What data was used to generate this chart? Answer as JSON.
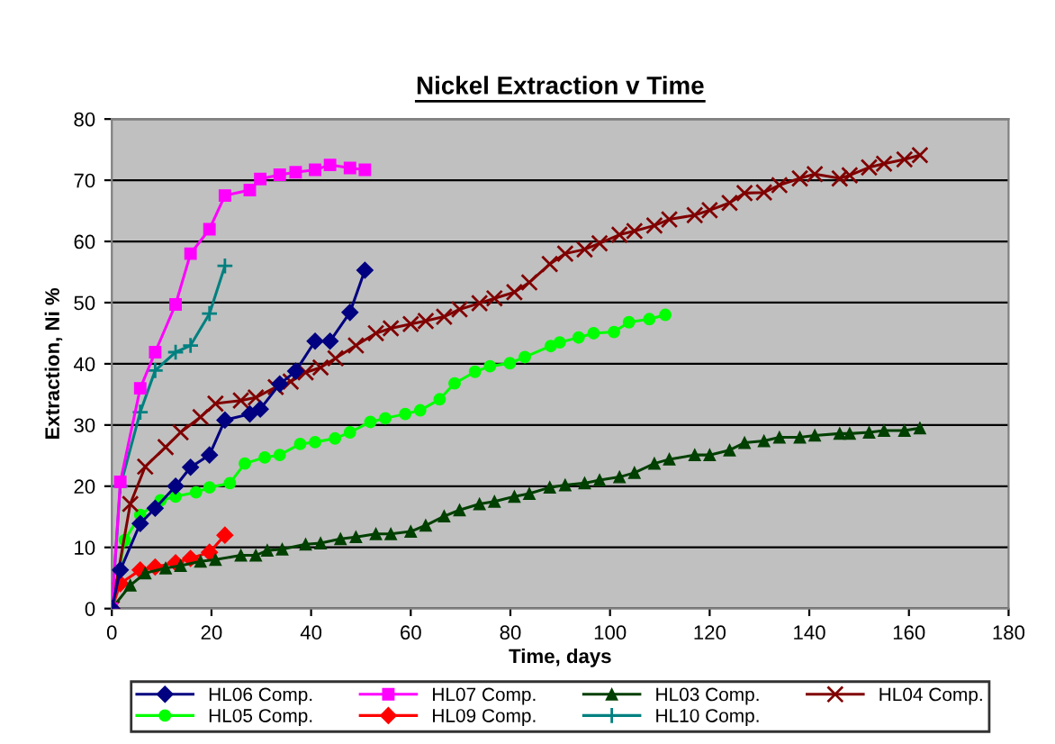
{
  "chart_data": {
    "type": "line",
    "title": "Nickel Extraction v Time",
    "xlabel": "Time, days",
    "ylabel": "Extraction, Ni %",
    "xlim": [
      0,
      180
    ],
    "xticks": [
      0,
      20,
      40,
      60,
      80,
      100,
      120,
      140,
      160,
      180
    ],
    "ylim": [
      0,
      80
    ],
    "yticks": [
      0,
      10,
      20,
      30,
      40,
      50,
      60,
      70,
      80
    ],
    "grid": "y",
    "legend": "bottom",
    "series": [
      {
        "name": "HL06 Comp.",
        "color": "#000080",
        "marker": "diamond",
        "x": [
          0,
          1.7,
          5.7,
          8.7,
          12.8,
          15.8,
          19.6,
          22.7,
          27.7,
          29.8,
          33.7,
          36.9,
          40.8,
          43.8,
          47.8,
          50.8
        ],
        "values": [
          0,
          6.3,
          13.9,
          16.4,
          20.0,
          23.1,
          25.1,
          30.8,
          31.8,
          32.6,
          36.7,
          38.8,
          43.7,
          43.7,
          48.4,
          55.3
        ]
      },
      {
        "name": "HL07 Comp.",
        "color": "#ff00ff",
        "marker": "square",
        "x": [
          0,
          1.7,
          5.7,
          8.7,
          12.8,
          15.8,
          19.6,
          22.7,
          27.7,
          29.8,
          33.7,
          36.9,
          40.8,
          43.8,
          47.8,
          50.8
        ],
        "values": [
          0,
          20.7,
          36.0,
          41.9,
          49.7,
          58.0,
          62.0,
          67.5,
          68.4,
          70.2,
          70.9,
          71.3,
          71.7,
          72.5,
          72.0,
          71.7
        ]
      },
      {
        "name": "HL03 Comp.",
        "color": "#004000",
        "marker": "triangle",
        "x": [
          0,
          3.7,
          6.7,
          10.8,
          13.8,
          17.8,
          20.8,
          25.9,
          28.9,
          31.2,
          34.2,
          38.9,
          41.9,
          45.9,
          49.0,
          53.0,
          56.0,
          60.0,
          63.0,
          66.7,
          69.8,
          73.8,
          76.8,
          80.8,
          83.8,
          87.9,
          91.0,
          94.9,
          97.9,
          101.9,
          104.9,
          108.9,
          111.9,
          117.0,
          120.0,
          124.0,
          127.0,
          130.9,
          134.0,
          138.1,
          141.1,
          146.1,
          148.1,
          152.0,
          155.0,
          159.1,
          162.2
        ],
        "values": [
          0,
          3.8,
          5.8,
          6.6,
          7.0,
          7.7,
          8.0,
          8.7,
          8.7,
          9.5,
          9.7,
          10.5,
          10.7,
          11.4,
          11.7,
          12.2,
          12.2,
          12.6,
          13.6,
          15.1,
          16.1,
          17.1,
          17.5,
          18.3,
          18.8,
          19.8,
          20.2,
          20.5,
          21.0,
          21.5,
          22.2,
          23.7,
          24.4,
          25.1,
          25.1,
          25.9,
          27.1,
          27.4,
          28.0,
          28.0,
          28.3,
          28.6,
          28.6,
          28.8,
          29.1,
          29.1,
          29.5
        ]
      },
      {
        "name": "HL04 Comp.",
        "color": "#800000",
        "marker": "cross",
        "x": [
          0,
          3.7,
          6.7,
          10.8,
          13.8,
          17.8,
          20.8,
          25.9,
          28.9,
          32.9,
          35.9,
          38.9,
          41.9,
          44.9,
          49.0,
          53.0,
          56.0,
          60.0,
          63.0,
          66.7,
          69.8,
          73.8,
          76.8,
          80.8,
          83.8,
          87.9,
          91.0,
          94.9,
          97.9,
          101.9,
          104.9,
          108.9,
          111.9,
          117.0,
          120.0,
          124.0,
          127.0,
          130.9,
          134.0,
          138.1,
          141.1,
          146.1,
          148.1,
          152.0,
          155.0,
          159.1,
          162.2
        ],
        "values": [
          0,
          17.1,
          23.2,
          26.4,
          28.8,
          31.3,
          33.5,
          34.0,
          34.5,
          36.2,
          37.1,
          38.6,
          39.4,
          40.9,
          43.0,
          45.0,
          45.8,
          46.5,
          47.0,
          47.7,
          48.9,
          49.9,
          50.7,
          51.7,
          53.3,
          56.3,
          58.0,
          58.7,
          59.7,
          61.1,
          61.7,
          62.6,
          63.6,
          64.3,
          65.1,
          66.3,
          67.9,
          68.0,
          69.2,
          70.3,
          71.0,
          70.3,
          70.8,
          72.1,
          72.7,
          73.4,
          74.1
        ]
      },
      {
        "name": "HL05 Comp.",
        "color": "#00ff00",
        "marker": "circle",
        "x": [
          0,
          2.6,
          5.7,
          9.8,
          12.8,
          16.9,
          19.6,
          23.7,
          26.7,
          30.7,
          33.7,
          37.8,
          40.8,
          44.8,
          47.8,
          51.9,
          54.9,
          58.9,
          61.9,
          65.8,
          68.8,
          72.9,
          75.9,
          79.9,
          82.9,
          88.1,
          89.9,
          93.7,
          96.7,
          100.8,
          103.8,
          107.9,
          111.1
        ],
        "values": [
          0,
          11.2,
          15.3,
          17.7,
          18.3,
          19.0,
          19.8,
          20.5,
          23.7,
          24.7,
          25.1,
          26.9,
          27.2,
          27.8,
          28.8,
          30.5,
          31.1,
          31.8,
          32.4,
          34.2,
          36.8,
          38.7,
          39.6,
          40.1,
          41.1,
          42.9,
          43.5,
          44.3,
          45.0,
          45.2,
          46.8,
          47.3,
          48.0
        ]
      },
      {
        "name": "HL09 Comp.",
        "color": "#ff0000",
        "marker": "diamond",
        "x": [
          0,
          1.7,
          5.7,
          8.7,
          12.8,
          15.8,
          19.6,
          22.7
        ],
        "values": [
          0,
          4.1,
          6.3,
          6.8,
          7.5,
          8.2,
          9.2,
          12.0
        ]
      },
      {
        "name": "HL10 Comp.",
        "color": "#008080",
        "marker": "plus",
        "x": [
          0,
          1.7,
          5.7,
          8.7,
          12.8,
          15.8,
          19.6,
          22.7
        ],
        "values": [
          0,
          20.0,
          32.1,
          38.9,
          41.9,
          43.0,
          48.2,
          56.0
        ]
      }
    ]
  }
}
